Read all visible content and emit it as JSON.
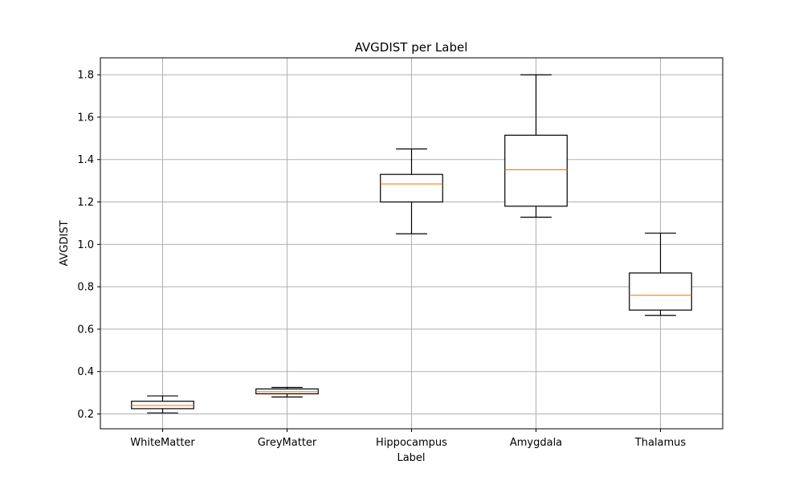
{
  "chart_data": {
    "type": "boxplot",
    "title": "AVGDIST per Label",
    "xlabel": "Label",
    "ylabel": "AVGDIST",
    "categories": [
      "WhiteMatter",
      "GreyMatter",
      "Hippocampus",
      "Amygdala",
      "Thalamus"
    ],
    "boxes": [
      {
        "category": "WhiteMatter",
        "whisker_low": 0.205,
        "q1": 0.225,
        "median": 0.24,
        "q3": 0.26,
        "whisker_high": 0.285
      },
      {
        "category": "GreyMatter",
        "whisker_low": 0.28,
        "q1": 0.295,
        "median": 0.305,
        "q3": 0.318,
        "whisker_high": 0.325
      },
      {
        "category": "Hippocampus",
        "whisker_low": 1.05,
        "q1": 1.2,
        "median": 1.285,
        "q3": 1.33,
        "whisker_high": 1.45
      },
      {
        "category": "Amygdala",
        "whisker_low": 1.128,
        "q1": 1.18,
        "median": 1.352,
        "q3": 1.515,
        "whisker_high": 1.8
      },
      {
        "category": "Thalamus",
        "whisker_low": 0.665,
        "q1": 0.69,
        "median": 0.76,
        "q3": 0.865,
        "whisker_high": 1.053
      }
    ],
    "ylim": [
      0.13,
      1.88
    ],
    "yticks": [
      0.2,
      0.4,
      0.6,
      0.8,
      1.0,
      1.2,
      1.4,
      1.6,
      1.8
    ],
    "ytick_labels": [
      "0.2",
      "0.4",
      "0.6",
      "0.8",
      "1.0",
      "1.2",
      "1.4",
      "1.6",
      "1.8"
    ],
    "grid": true,
    "colors": {
      "box": "#000000",
      "median": "#ff7f0e",
      "grid": "#b0b0b0"
    }
  }
}
